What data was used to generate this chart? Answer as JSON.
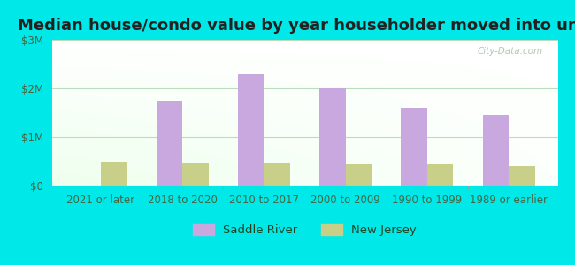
{
  "title": "Median house/condo value by year householder moved into unit",
  "categories": [
    "2021 or later",
    "2018 to 2020",
    "2010 to 2017",
    "2000 to 2009",
    "1990 to 1999",
    "1989 or earlier"
  ],
  "saddle_river": [
    0,
    1750000,
    2300000,
    2000000,
    1600000,
    1450000
  ],
  "new_jersey": [
    500000,
    450000,
    460000,
    430000,
    430000,
    400000
  ],
  "ylim": [
    0,
    3000000
  ],
  "yticks": [
    0,
    1000000,
    2000000,
    3000000
  ],
  "ytick_labels": [
    "$0",
    "$1M",
    "$2M",
    "$3M"
  ],
  "saddle_river_color": "#c9a8df",
  "new_jersey_color": "#c8cf88",
  "bar_width": 0.32,
  "background_color": "#00e8e8",
  "watermark": "City-Data.com",
  "legend_saddle_river": "Saddle River",
  "legend_new_jersey": "New Jersey",
  "title_fontsize": 13,
  "tick_fontsize": 8.5,
  "legend_fontsize": 9.5,
  "grid_color": "#d0e8d0",
  "axis_color": "#88aa88"
}
